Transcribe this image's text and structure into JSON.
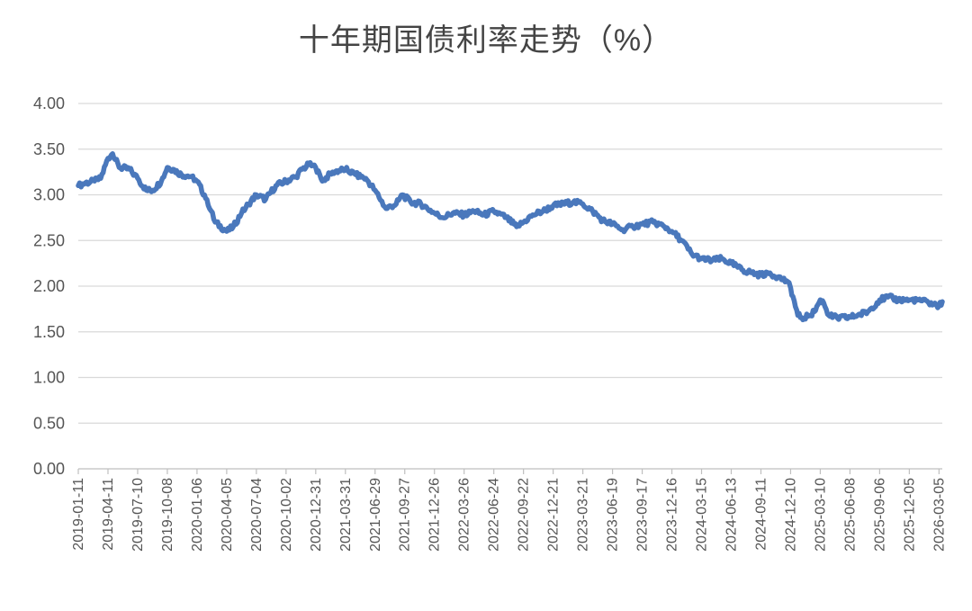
{
  "chart_data": {
    "type": "line",
    "title": "十年期国债利率走势（%）",
    "xlabel": "",
    "ylabel": "",
    "ylim": [
      0,
      4
    ],
    "yticks": [
      "0.00",
      "0.50",
      "1.00",
      "1.50",
      "2.00",
      "2.50",
      "3.00",
      "3.50",
      "4.00"
    ],
    "x_tick_labels": [
      "2019-01-11",
      "2019-04-11",
      "2019-07-10",
      "2019-10-08",
      "2020-01-06",
      "2020-04-05",
      "2020-07-04",
      "2020-10-02",
      "2020-12-31",
      "2021-03-31",
      "2021-06-29",
      "2021-09-27",
      "2021-12-26",
      "2022-03-26",
      "2022-06-24",
      "2022-09-22",
      "2022-12-21",
      "2023-03-21",
      "2023-06-19",
      "2023-09-17",
      "2023-12-16",
      "2024-03-15",
      "2024-06-13",
      "2024-09-11",
      "2024-12-10",
      "2025-03-10",
      "2025-06-08",
      "2025-09-06",
      "2025-12-05",
      "2026-03-05"
    ],
    "x_range": [
      "2019-01-11",
      "2026-03-15"
    ],
    "grid": true,
    "legend": "none",
    "series": [
      {
        "color": "#4a78bc",
        "x": [
          "2019-01-11",
          "2019-02-01",
          "2019-03-01",
          "2019-03-20",
          "2019-04-11",
          "2019-04-25",
          "2019-05-15",
          "2019-06-15",
          "2019-07-10",
          "2019-08-05",
          "2019-08-25",
          "2019-09-20",
          "2019-10-08",
          "2019-10-25",
          "2019-11-20",
          "2019-12-20",
          "2020-01-06",
          "2020-02-05",
          "2020-03-01",
          "2020-04-05",
          "2020-04-25",
          "2020-05-20",
          "2020-06-10",
          "2020-07-04",
          "2020-08-01",
          "2020-09-01",
          "2020-10-02",
          "2020-11-01",
          "2020-11-20",
          "2020-12-10",
          "2020-12-31",
          "2021-01-20",
          "2021-02-20",
          "2021-03-31",
          "2021-05-01",
          "2021-06-01",
          "2021-06-29",
          "2021-08-01",
          "2021-09-01",
          "2021-09-20",
          "2021-10-15",
          "2021-11-15",
          "2021-12-26",
          "2022-01-20",
          "2022-02-20",
          "2022-03-26",
          "2022-04-25",
          "2022-05-25",
          "2022-06-24",
          "2022-08-01",
          "2022-09-01",
          "2022-09-22",
          "2022-10-20",
          "2022-11-20",
          "2022-12-21",
          "2023-01-20",
          "2023-02-20",
          "2023-03-21",
          "2023-04-20",
          "2023-05-20",
          "2023-06-19",
          "2023-07-20",
          "2023-08-20",
          "2023-09-17",
          "2023-10-20",
          "2023-11-20",
          "2023-12-16",
          "2024-01-15",
          "2024-02-15",
          "2024-03-15",
          "2024-04-15",
          "2024-05-15",
          "2024-06-13",
          "2024-07-15",
          "2024-08-10",
          "2024-09-11",
          "2024-10-01",
          "2024-11-01",
          "2024-12-01",
          "2024-12-10",
          "2025-01-01",
          "2025-01-20",
          "2025-02-05",
          "2025-02-20",
          "2025-03-10",
          "2025-03-20",
          "2025-04-05",
          "2025-05-01",
          "2025-06-08",
          "2025-07-01",
          "2025-08-01",
          "2025-09-06",
          "2025-10-01",
          "2025-11-01",
          "2025-12-05",
          "2026-01-01",
          "2026-02-01",
          "2026-03-05",
          "2026-03-15"
        ],
        "values": [
          3.1,
          3.13,
          3.15,
          3.18,
          3.4,
          3.45,
          3.3,
          3.28,
          3.18,
          3.05,
          3.05,
          3.15,
          3.3,
          3.28,
          3.22,
          3.2,
          3.15,
          2.95,
          2.7,
          2.6,
          2.65,
          2.8,
          2.9,
          3.0,
          2.95,
          3.1,
          3.15,
          3.2,
          3.28,
          3.33,
          3.3,
          3.15,
          3.25,
          3.28,
          3.22,
          3.18,
          3.05,
          2.85,
          2.9,
          3.0,
          2.92,
          2.9,
          2.8,
          2.75,
          2.8,
          2.78,
          2.82,
          2.78,
          2.82,
          2.75,
          2.65,
          2.7,
          2.78,
          2.82,
          2.88,
          2.9,
          2.92,
          2.9,
          2.82,
          2.72,
          2.68,
          2.62,
          2.65,
          2.68,
          2.7,
          2.66,
          2.6,
          2.5,
          2.35,
          2.3,
          2.28,
          2.3,
          2.25,
          2.18,
          2.15,
          2.12,
          2.15,
          2.1,
          2.05,
          1.98,
          1.68,
          1.65,
          1.68,
          1.72,
          1.85,
          1.82,
          1.68,
          1.65,
          1.66,
          1.68,
          1.72,
          1.85,
          1.88,
          1.85,
          1.85,
          1.85,
          1.82,
          1.78,
          1.83
        ]
      }
    ]
  }
}
